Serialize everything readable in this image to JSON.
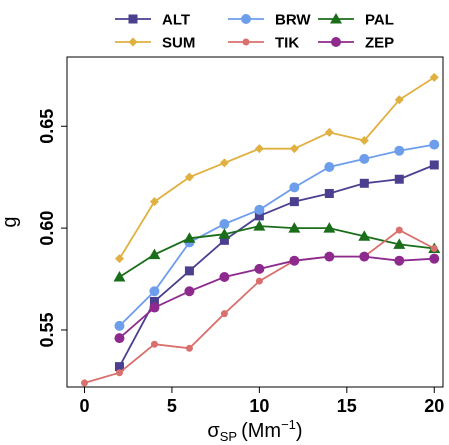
{
  "chart_data": {
    "type": "line",
    "title": "",
    "xlabel": {
      "main": "σ",
      "sub": "SP",
      "unit_open": "(Mm",
      "unit_sup": "−1",
      "unit_close": ")"
    },
    "ylabel": "g",
    "xlim": [
      -1,
      20.5
    ],
    "ylim": [
      0.522,
      0.684
    ],
    "xticks": [
      0,
      5,
      10,
      15,
      20
    ],
    "yticks": [
      0.55,
      0.6,
      0.65
    ],
    "xtick_labels": [
      "0",
      "5",
      "10",
      "15",
      "20"
    ],
    "ytick_labels": [
      "0.55",
      "0.60",
      "0.65"
    ],
    "grid": false,
    "legend_position": "top",
    "series": [
      {
        "name": "ALT",
        "color": "#4b3f8f",
        "marker": "square",
        "x": [
          2,
          4,
          6,
          8,
          10,
          12,
          14,
          16,
          18,
          20
        ],
        "y": [
          0.532,
          0.564,
          0.579,
          0.594,
          0.606,
          0.613,
          0.617,
          0.622,
          0.624,
          0.631
        ]
      },
      {
        "name": "BRW",
        "color": "#6d9eeb",
        "marker": "circle",
        "x": [
          2,
          4,
          6,
          8,
          10,
          12,
          14,
          16,
          18,
          20
        ],
        "y": [
          0.552,
          0.569,
          0.593,
          0.602,
          0.609,
          0.62,
          0.63,
          0.634,
          0.638,
          0.641
        ]
      },
      {
        "name": "PAL",
        "color": "#1a6e1a",
        "marker": "triangle",
        "x": [
          2,
          4,
          6,
          8,
          10,
          12,
          14,
          16,
          18,
          20
        ],
        "y": [
          0.576,
          0.587,
          0.595,
          0.597,
          0.601,
          0.6,
          0.6,
          0.596,
          0.592,
          0.59
        ]
      },
      {
        "name": "SUM",
        "color": "#e0b040",
        "marker": "diamond",
        "x": [
          2,
          4,
          6,
          8,
          10,
          12,
          14,
          16,
          18,
          20
        ],
        "y": [
          0.585,
          0.613,
          0.625,
          0.632,
          0.639,
          0.639,
          0.647,
          0.643,
          0.663,
          0.674
        ]
      },
      {
        "name": "TIK",
        "color": "#d9706e",
        "marker": "circle-small",
        "x": [
          0,
          2,
          4,
          6,
          8,
          10,
          12,
          14,
          16,
          18,
          20
        ],
        "y": [
          0.524,
          0.529,
          0.543,
          0.541,
          0.558,
          0.574,
          0.584,
          0.586,
          0.586,
          0.599,
          0.59
        ]
      },
      {
        "name": "ZEP",
        "color": "#8e2a8e",
        "marker": "circle",
        "x": [
          2,
          4,
          6,
          8,
          10,
          12,
          14,
          16,
          18,
          20
        ],
        "y": [
          0.546,
          0.561,
          0.569,
          0.576,
          0.58,
          0.584,
          0.586,
          0.586,
          0.584,
          0.585
        ]
      }
    ]
  }
}
